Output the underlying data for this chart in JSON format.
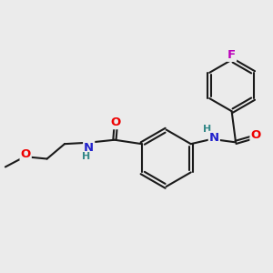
{
  "bg_color": "#ebebeb",
  "bond_color": "#1a1a1a",
  "bond_width": 1.5,
  "atom_colors": {
    "O": "#ee0000",
    "N": "#2222cc",
    "F": "#bb00bb",
    "H": "#338888",
    "C": "#1a1a1a"
  },
  "font_size_atom": 9.5
}
